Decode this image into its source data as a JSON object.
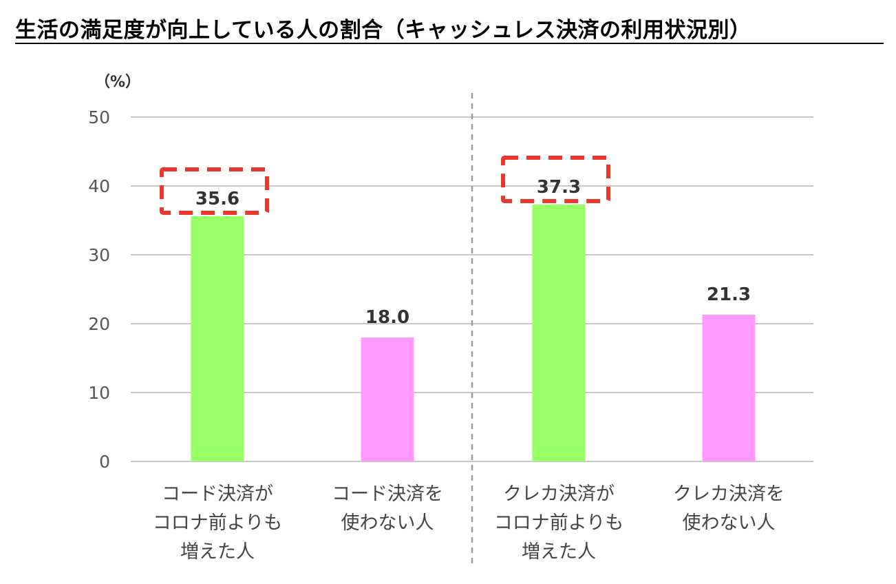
{
  "chart_data": {
    "type": "bar",
    "title": "生活の満足度が向上している人の割合（キャッシュレス決済の利用状況別）",
    "unit_label": "（%）",
    "categories": [
      [
        "コード決済が",
        "コロナ前よりも",
        "増えた人"
      ],
      [
        "コード決済を",
        "使わない人"
      ],
      [
        "クレカ決済が",
        "コロナ前よりも",
        "増えた人"
      ],
      [
        "クレカ決済を",
        "使わない人"
      ]
    ],
    "values": [
      35.6,
      18.0,
      37.3,
      21.3
    ],
    "value_labels": [
      "35.6",
      "18.0",
      "37.3",
      "21.3"
    ],
    "bar_colors": [
      "#99ff66",
      "#ff99ff",
      "#99ff66",
      "#ff99ff"
    ],
    "highlighted": [
      true,
      false,
      true,
      false
    ],
    "highlight_color": "#e8372b",
    "ylim": [
      0,
      50
    ],
    "yticks": [
      0,
      10,
      20,
      30,
      40,
      50
    ],
    "grid": true,
    "group_divider": "dashed",
    "xlabel": "",
    "ylabel": ""
  }
}
